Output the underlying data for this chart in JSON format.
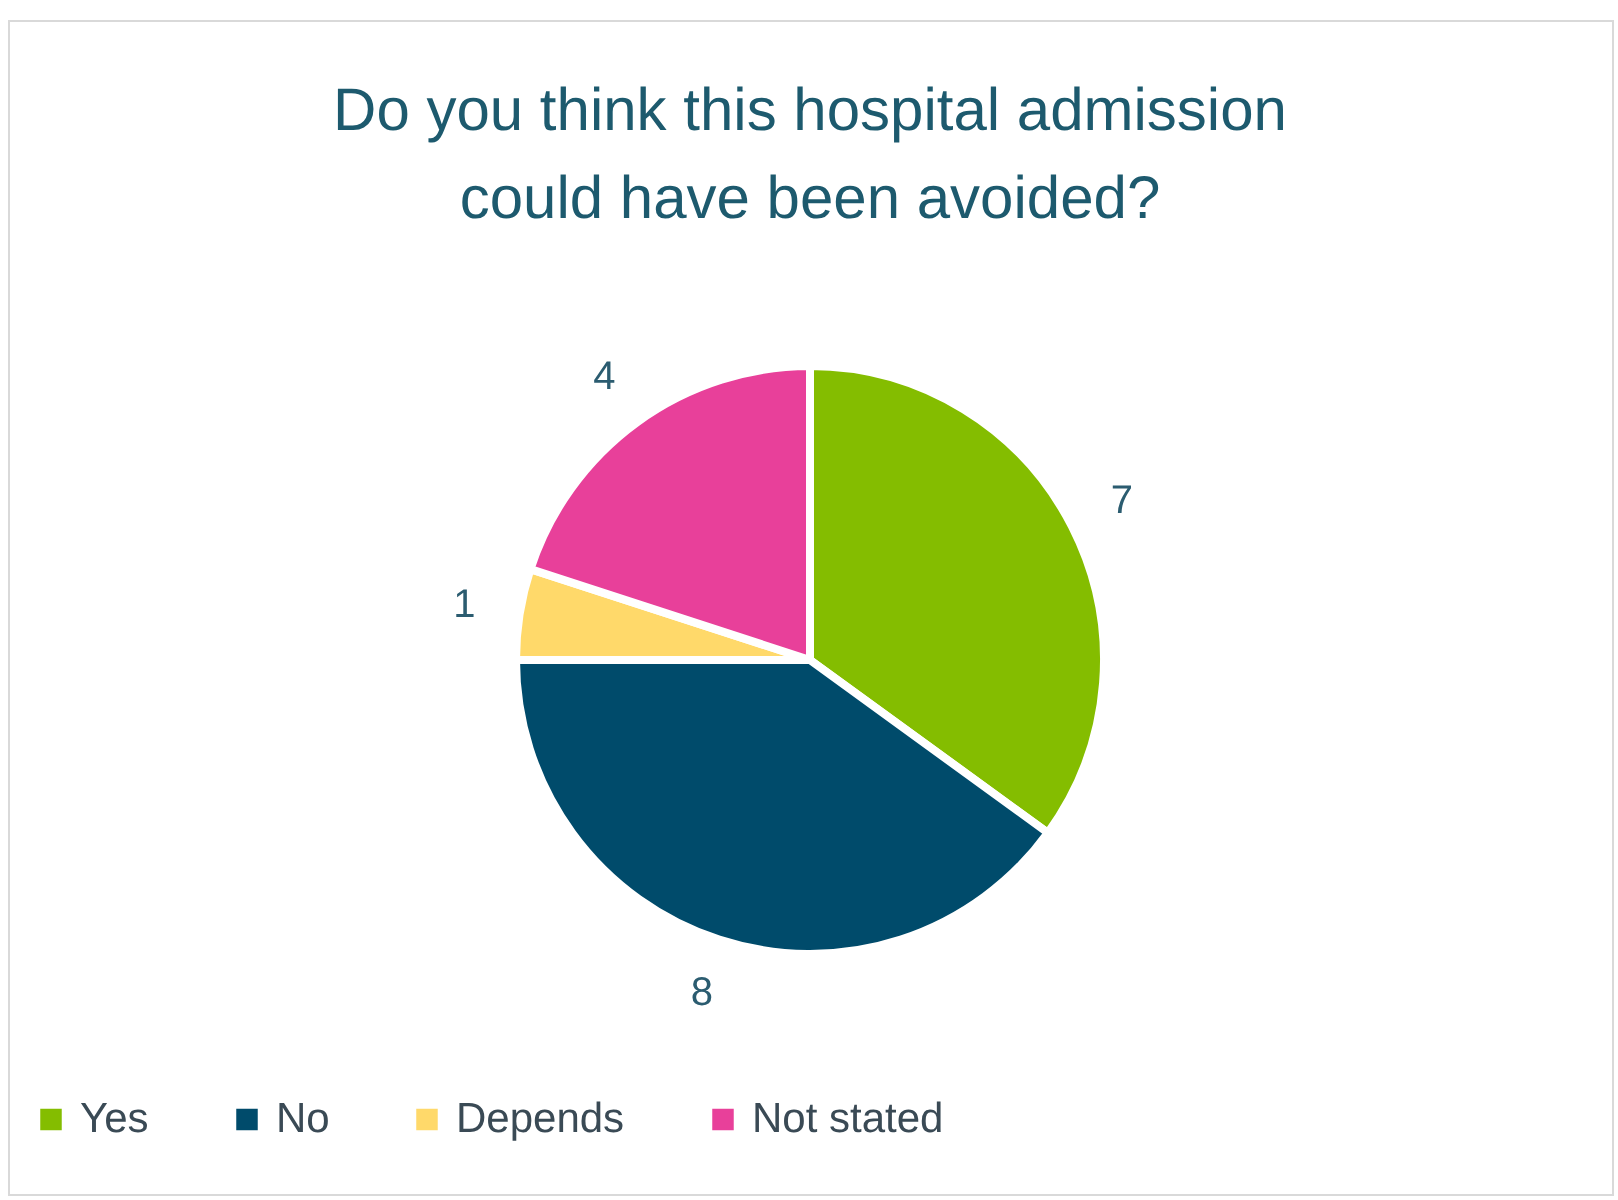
{
  "chart_data": {
    "type": "pie",
    "title": "Do you think this hospital admission could have been avoided?",
    "categories": [
      "Yes",
      "No",
      "Depends",
      "Not stated"
    ],
    "values": [
      7,
      8,
      1,
      4
    ],
    "colors": [
      "#84bd00",
      "#004b6b",
      "#ffd96a",
      "#e8409a"
    ],
    "data_labels": true,
    "legend": "bottom"
  }
}
